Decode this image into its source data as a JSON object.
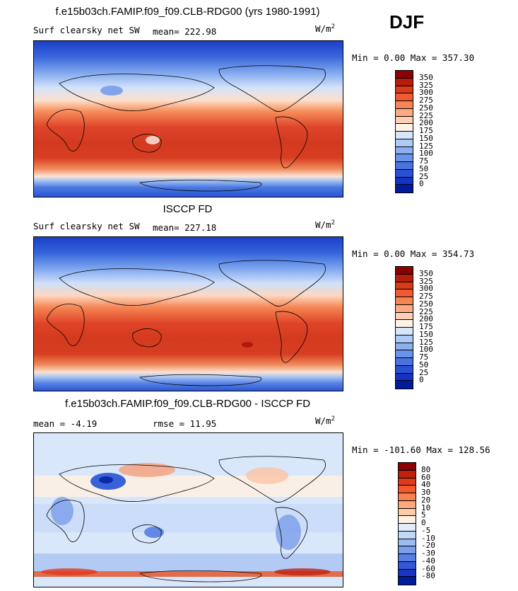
{
  "season": "DJF",
  "panels": [
    {
      "title": "f.e15b03ch.FAMIP.f09_f09.CLB-RDG00 (yrs 1980-1991)",
      "left_label": "Surf clearsky net SW",
      "center_label": "mean= 222.98",
      "units_base": "W/m",
      "units_exp": "2",
      "minmax": "Min =    0.00 Max = 357.30",
      "colorbar_levels": [
        "350",
        "325",
        "300",
        "275",
        "250",
        "225",
        "200",
        "175",
        "150",
        "125",
        "100",
        "75",
        "50",
        "25",
        "0"
      ],
      "colorbar_colors": [
        "#8b0000",
        "#b81d0c",
        "#d93a1a",
        "#ef5b33",
        "#f78553",
        "#fbaa82",
        "#fdd0b5",
        "#fff2e6",
        "#d6e6fb",
        "#adcbf6",
        "#8bb0f0",
        "#6a93ea",
        "#4a73e0",
        "#2a51d4",
        "#1134c4",
        "#001c9c"
      ]
    },
    {
      "title": "ISCCP FD",
      "left_label": "Surf clearsky net SW",
      "center_label": "mean= 227.18",
      "units_base": "W/m",
      "units_exp": "2",
      "minmax": "Min =    0.00 Max = 354.73",
      "colorbar_levels": [
        "350",
        "325",
        "300",
        "275",
        "250",
        "225",
        "200",
        "175",
        "150",
        "125",
        "100",
        "75",
        "50",
        "25",
        "0"
      ],
      "colorbar_colors": [
        "#8b0000",
        "#b81d0c",
        "#d93a1a",
        "#ef5b33",
        "#f78553",
        "#fbaa82",
        "#fdd0b5",
        "#fff2e6",
        "#d6e6fb",
        "#adcbf6",
        "#8bb0f0",
        "#6a93ea",
        "#4a73e0",
        "#2a51d4",
        "#1134c4",
        "#001c9c"
      ]
    },
    {
      "title": "f.e15b03ch.FAMIP.f09_f09.CLB-RDG00 - ISCCP FD",
      "left_label": "mean =   -4.19",
      "center_label": "rmse =   11.95",
      "units_base": "W/m",
      "units_exp": "2",
      "minmax": "Min = -101.60 Max = 128.56",
      "colorbar_levels": [
        "80",
        "60",
        "40",
        "30",
        "20",
        "10",
        "5",
        "0",
        "-5",
        "-10",
        "-20",
        "-30",
        "-40",
        "-60",
        "-80"
      ],
      "colorbar_colors": [
        "#8b0000",
        "#c0210f",
        "#e03a1c",
        "#f25a2e",
        "#f98050",
        "#fca77c",
        "#fdcba8",
        "#fff0e2",
        "#e2ecfb",
        "#c3d7f7",
        "#9dbbf1",
        "#7a9eea",
        "#577ee2",
        "#3559d6",
        "#1a35c2",
        "#001c9c"
      ]
    }
  ]
}
